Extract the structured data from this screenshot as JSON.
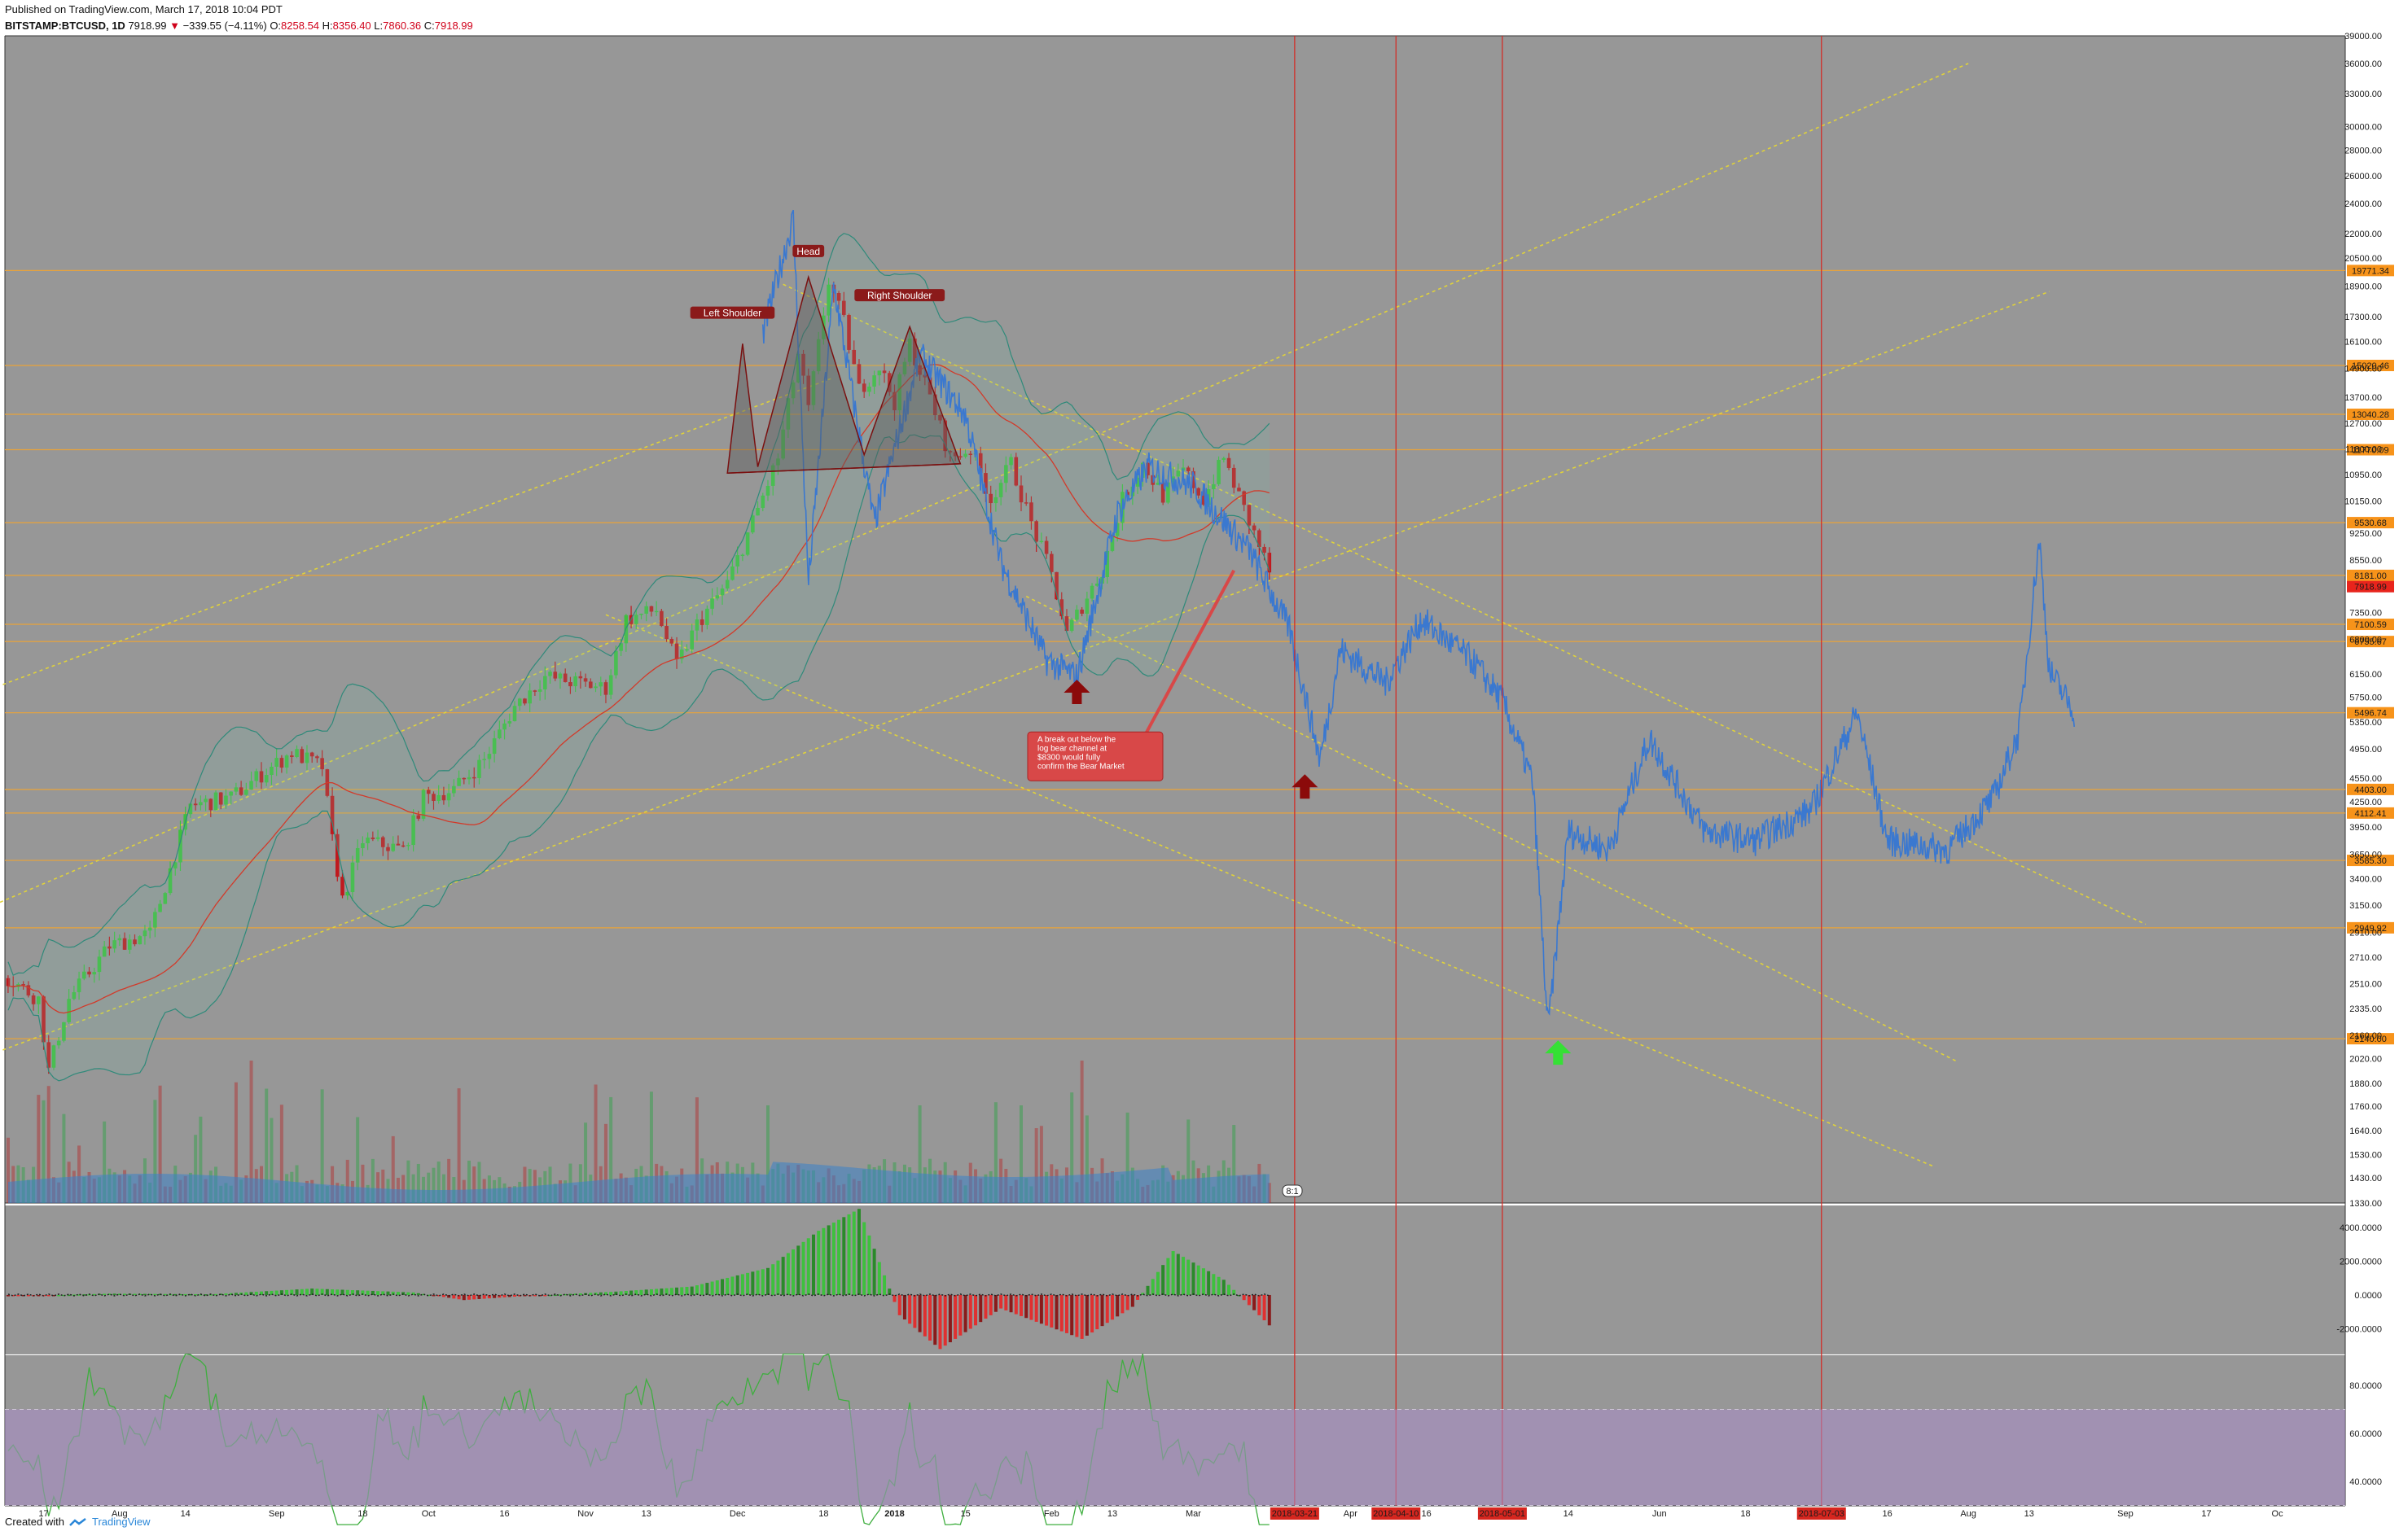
{
  "header": {
    "published": "Published on TradingView.com, March 17, 2018 10:04 PDT",
    "symbol": "BITSTAMP:BTCUSD, 1D",
    "last": "7918.99",
    "change_arrow": "▼",
    "change": "−339.55 (−4.11%)",
    "o_label": "O:",
    "o": "8258.54",
    "h_label": "H:",
    "h": "8356.40",
    "l_label": "L:",
    "l": "7860.36",
    "c_label": "C:",
    "c": "7918.99"
  },
  "footer": {
    "created_with": "Created with",
    "brand": "TradingView"
  },
  "colors": {
    "background": "#979797",
    "up_candle": "#3fbf3f",
    "down_candle": "#c0191e",
    "projection": "#3a78d0",
    "bollinger": "#2f8a7a",
    "fib_lines": "#e8a33a",
    "channel_lines": "#e0d23a",
    "cycle_lines": "#d6261f",
    "pattern_label": "#8b1a1a",
    "price_label_orange": "#f7931a",
    "price_label_red": "#e8241c",
    "up_arrow": "#35e035",
    "down_arrow": "#8b0a0a"
  },
  "chart_data": {
    "type": "candlestick",
    "price_scale": "log",
    "ylim": [
      1330,
      39000
    ],
    "y_ticks": [
      "39000.00",
      "36000.00",
      "33000.00",
      "30000.00",
      "28000.00",
      "26000.00",
      "24000.00",
      "22000.00",
      "20500.00",
      "18900.00",
      "17300.00",
      "16100.00",
      "14900.00",
      "13700.00",
      "12700.00",
      "11800.00",
      "10950.00",
      "10150.00",
      "9250.00",
      "8550.00",
      "7900.00",
      "7350.00",
      "6800.00",
      "6150.00",
      "5750.00",
      "5350.00",
      "4950.00",
      "4550.00",
      "4250.00",
      "3950.00",
      "3650.00",
      "3400.00",
      "3150.00",
      "2910.00",
      "2710.00",
      "2510.00",
      "2335.00",
      "2160.00",
      "2020.00",
      "1880.00",
      "1760.00",
      "1640.00",
      "1530.00",
      "1430.00",
      "1330.00"
    ],
    "fib_levels": [
      "19771.34",
      "15020.46",
      "13040.28",
      "11770.09",
      "9530.68",
      "8181.00",
      "7100.59",
      "6755.67",
      "5496.74",
      "4403.00",
      "4112.41",
      "3585.30",
      "2949.92",
      "2140.00"
    ],
    "last_price_label": "7918.99",
    "x_ticks": [
      "17",
      "Aug",
      "14",
      "Sep",
      "18",
      "Oct",
      "16",
      "Nov",
      "13",
      "Dec",
      "18",
      "2018",
      "15",
      "Feb",
      "13",
      "Mar",
      "Apr",
      "16",
      "14",
      "Jun",
      "18",
      "16",
      "Aug",
      "13",
      "Sep",
      "17",
      "Oc"
    ],
    "cycle_dates": [
      "2018-03-21",
      "2018-04-10",
      "2018-05-01",
      "2018-07-03"
    ],
    "annotations": {
      "head": "Head",
      "left_shoulder": "Left Shoulder",
      "right_shoulder": "Right Shoulder",
      "breakout_note": "A break out below the log bear channel at $8300 would fully confirm the Bear Market",
      "session_badge": "8:1"
    },
    "projection_series_note": "blue fractal projection from the 2014 bear market",
    "candles_from": "2017-07-10",
    "candles_to": "2018-03-17",
    "candle_count": 250,
    "macd_ticks": [
      "4000.0000",
      "2000.0000",
      "0.0000",
      "-2000.0000"
    ],
    "rsi_ticks": [
      "80.0000",
      "60.0000",
      "40.0000"
    ]
  }
}
